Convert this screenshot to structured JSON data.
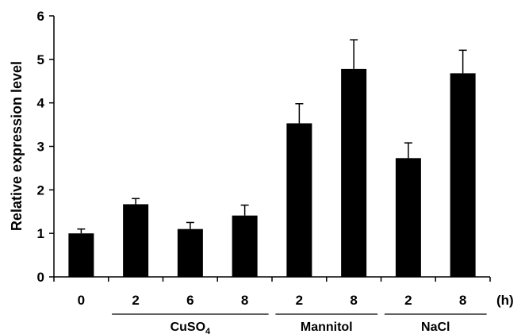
{
  "chart_data": {
    "type": "bar",
    "ylabel": "Relative expression level",
    "x_unit": "(h)",
    "ylim": [
      0,
      6
    ],
    "yticks": [
      "0",
      "1",
      "2",
      "3",
      "4",
      "5",
      "6"
    ],
    "bar_color": "#000000",
    "categories": [
      "0",
      "2",
      "6",
      "8",
      "2",
      "8",
      "2",
      "8"
    ],
    "values": [
      1.0,
      1.67,
      1.1,
      1.41,
      3.53,
      4.78,
      2.73,
      4.68
    ],
    "errors": [
      0.1,
      0.13,
      0.15,
      0.24,
      0.45,
      0.67,
      0.35,
      0.53
    ],
    "groups": [
      {
        "name": "CuSO",
        "subscript": "4",
        "from": 1,
        "to": 3
      },
      {
        "name": "Mannitol",
        "from": 4,
        "to": 5
      },
      {
        "name": "NaCl",
        "from": 6,
        "to": 7
      }
    ]
  }
}
